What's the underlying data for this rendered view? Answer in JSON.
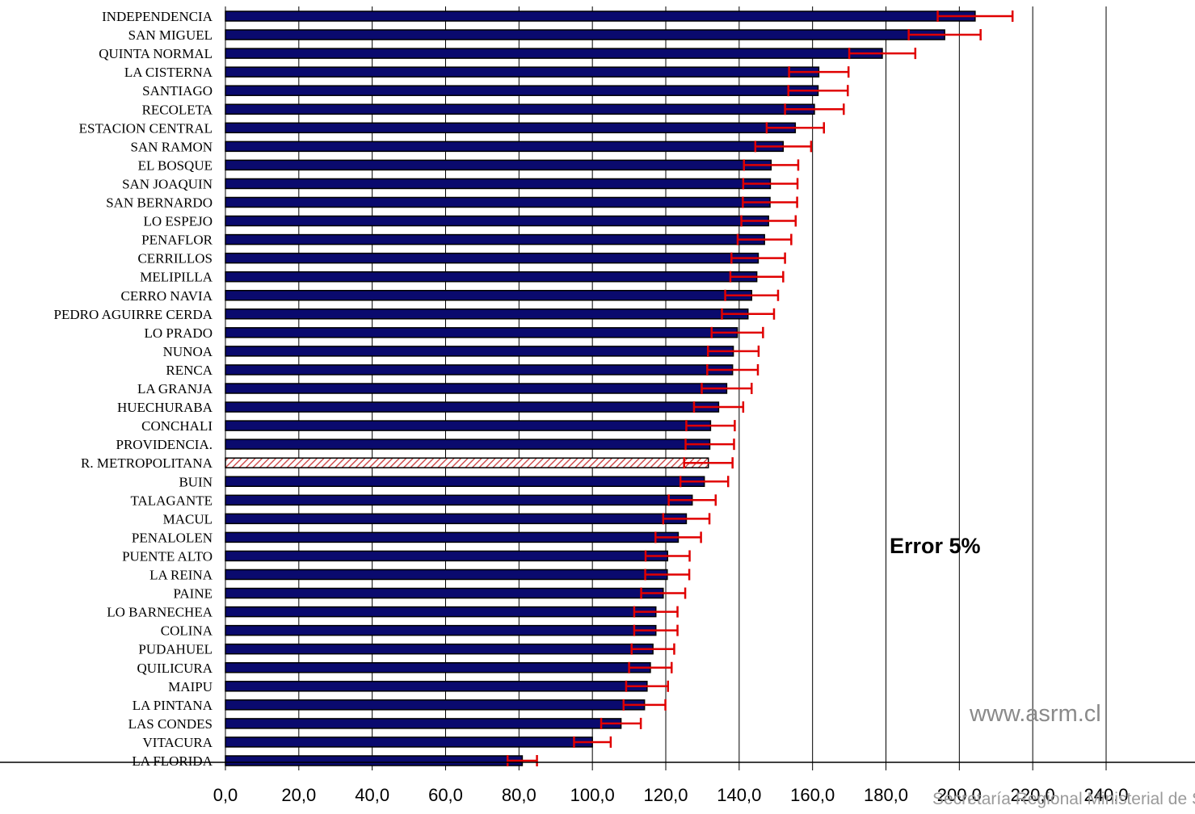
{
  "chart_data": {
    "type": "bar",
    "orientation": "horizontal",
    "categories": [
      "INDEPENDENCIA",
      "SAN MIGUEL",
      "QUINTA NORMAL",
      "LA CISTERNA",
      "SANTIAGO",
      "RECOLETA",
      "ESTACION CENTRAL",
      "SAN RAMON",
      "EL BOSQUE",
      "SAN JOAQUIN",
      "SAN BERNARDO",
      "LO ESPEJO",
      "PENAFLOR",
      "CERRILLOS",
      "MELIPILLA",
      "CERRO NAVIA",
      "PEDRO AGUIRRE CERDA",
      "LO PRADO",
      "NUNOA",
      "RENCA",
      "LA GRANJA",
      "HUECHURABA",
      "CONCHALI",
      "PROVIDENCIA.",
      "R. METROPOLITANA",
      "BUIN",
      "TALAGANTE",
      "MACUL",
      "PENALOLEN",
      "PUENTE ALTO",
      "LA REINA",
      "PAINE",
      "LO BARNECHEA",
      "COLINA",
      "PUDAHUEL",
      "QUILICURA",
      "MAIPU",
      "LA PINTANA",
      "LAS CONDES",
      "VITACURA",
      "LA FLORIDA"
    ],
    "values": [
      204.3,
      196.0,
      179.0,
      161.7,
      161.5,
      160.5,
      155.3,
      152.0,
      148.7,
      148.5,
      148.4,
      148.0,
      146.9,
      145.2,
      144.8,
      143.4,
      142.4,
      139.5,
      138.4,
      138.2,
      136.6,
      134.4,
      132.2,
      132.0,
      131.6,
      130.5,
      127.2,
      125.6,
      123.4,
      120.5,
      120.4,
      119.3,
      117.3,
      117.3,
      116.5,
      115.8,
      114.9,
      114.2,
      107.8,
      100.0,
      80.9
    ],
    "error": [
      10.2,
      9.8,
      9.0,
      8.1,
      8.1,
      8.0,
      7.8,
      7.6,
      7.4,
      7.4,
      7.4,
      7.4,
      7.3,
      7.3,
      7.2,
      7.2,
      7.1,
      7.0,
      6.9,
      6.9,
      6.8,
      6.7,
      6.6,
      6.6,
      6.6,
      6.5,
      6.4,
      6.3,
      6.2,
      6.0,
      6.0,
      6.0,
      5.9,
      5.9,
      5.8,
      5.8,
      5.7,
      5.7,
      5.4,
      5.0,
      4.0
    ],
    "highlight_category": "R. METROPOLITANA",
    "xlim": [
      0,
      240
    ],
    "xticks": [
      "0,0",
      "20,0",
      "40,0",
      "60,0",
      "80,0",
      "100,0",
      "120,0",
      "140,0",
      "160,0",
      "180,0",
      "200,0",
      "220,0",
      "240,0"
    ],
    "grid": true,
    "colors": {
      "bar": "#0a0a6e",
      "bar_outline": "#000000",
      "error_bar": "#e00000",
      "highlight": "#d05050",
      "grid": "#000000"
    },
    "annotation": "Error 5%",
    "title": "",
    "xlabel": "",
    "ylabel": ""
  },
  "watermark": "www.asrm.cl",
  "footer": "Secretaría Regional Ministerial de Salud"
}
